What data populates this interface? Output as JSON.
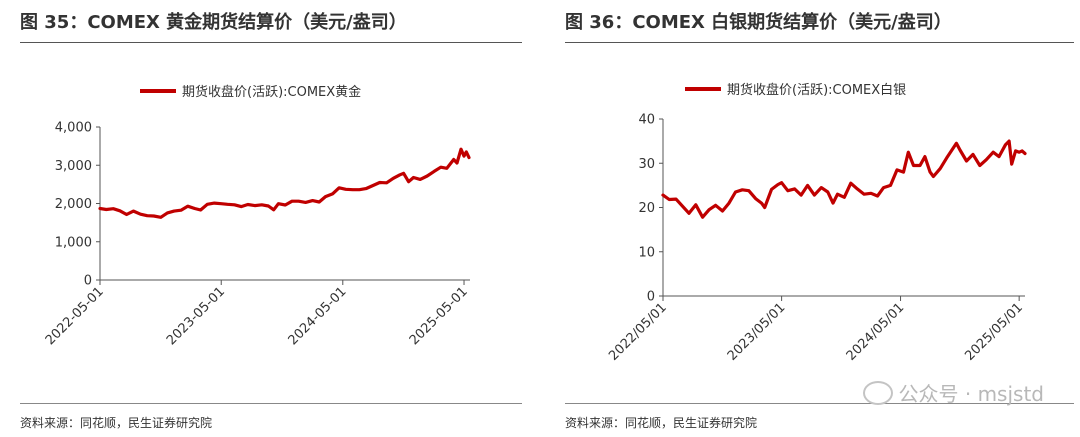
{
  "panels": [
    {
      "title": "图 35：COMEX 黄金期货结算价（美元/盎司）",
      "source": "资料来源：同花顺，民生证券研究院"
    },
    {
      "title": "图 36：COMEX 白银期货结算价（美元/盎司）",
      "source": "资料来源：同花顺，民生证券研究院"
    }
  ],
  "watermark": {
    "text": "公众号 · msjstd",
    "icon": "wechat-icon"
  },
  "colors": {
    "line": "#c00000",
    "axis": "#555555",
    "text": "#333333"
  },
  "chart_data": [
    {
      "type": "line",
      "legend_position": "top-center",
      "grid": false,
      "series": [
        {
          "name": "期货收盘价(活跃):COMEX黄金",
          "color": "#c00000",
          "points": [
            [
              "2022-05-01",
              1870
            ],
            [
              "2022-05-20",
              1842
            ],
            [
              "2022-06-10",
              1865
            ],
            [
              "2022-06-30",
              1808
            ],
            [
              "2022-07-20",
              1712
            ],
            [
              "2022-08-10",
              1800
            ],
            [
              "2022-08-31",
              1720
            ],
            [
              "2022-09-20",
              1680
            ],
            [
              "2022-10-10",
              1672
            ],
            [
              "2022-10-31",
              1640
            ],
            [
              "2022-11-20",
              1755
            ],
            [
              "2022-12-10",
              1800
            ],
            [
              "2022-12-31",
              1826
            ],
            [
              "2023-01-20",
              1930
            ],
            [
              "2023-02-10",
              1870
            ],
            [
              "2023-02-28",
              1830
            ],
            [
              "2023-03-20",
              1980
            ],
            [
              "2023-04-10",
              2010
            ],
            [
              "2023-05-01",
              1995
            ],
            [
              "2023-05-20",
              1980
            ],
            [
              "2023-06-10",
              1965
            ],
            [
              "2023-06-30",
              1920
            ],
            [
              "2023-07-20",
              1975
            ],
            [
              "2023-08-10",
              1945
            ],
            [
              "2023-08-31",
              1965
            ],
            [
              "2023-09-20",
              1935
            ],
            [
              "2023-10-06",
              1835
            ],
            [
              "2023-10-20",
              1995
            ],
            [
              "2023-11-10",
              1960
            ],
            [
              "2023-11-30",
              2060
            ],
            [
              "2023-12-20",
              2060
            ],
            [
              "2024-01-10",
              2030
            ],
            [
              "2024-01-31",
              2075
            ],
            [
              "2024-02-20",
              2040
            ],
            [
              "2024-03-10",
              2180
            ],
            [
              "2024-03-31",
              2250
            ],
            [
              "2024-04-20",
              2410
            ],
            [
              "2024-05-10",
              2370
            ],
            [
              "2024-05-31",
              2360
            ],
            [
              "2024-06-20",
              2360
            ],
            [
              "2024-07-10",
              2390
            ],
            [
              "2024-07-31",
              2470
            ],
            [
              "2024-08-20",
              2550
            ],
            [
              "2024-09-10",
              2540
            ],
            [
              "2024-09-30",
              2660
            ],
            [
              "2024-10-20",
              2750
            ],
            [
              "2024-10-31",
              2790
            ],
            [
              "2024-11-15",
              2570
            ],
            [
              "2024-11-30",
              2680
            ],
            [
              "2024-12-20",
              2630
            ],
            [
              "2025-01-10",
              2720
            ],
            [
              "2025-01-31",
              2840
            ],
            [
              "2025-02-20",
              2950
            ],
            [
              "2025-03-10",
              2920
            ],
            [
              "2025-03-31",
              3150
            ],
            [
              "2025-04-10",
              3060
            ],
            [
              "2025-04-22",
              3420
            ],
            [
              "2025-05-01",
              3240
            ],
            [
              "2025-05-08",
              3350
            ],
            [
              "2025-05-16",
              3200
            ]
          ]
        }
      ],
      "x_ticks": [
        "2022-05-01",
        "2023-05-01",
        "2024-05-01",
        "2025-05-01"
      ],
      "x_range": [
        "2022-05-01",
        "2025-05-19"
      ],
      "y_ticks": [
        "0",
        "1,000",
        "2,000",
        "3,000",
        "4,000"
      ],
      "ylim": [
        0,
        4000
      ]
    },
    {
      "type": "line",
      "legend_position": "top-center",
      "grid": false,
      "series": [
        {
          "name": "期货收盘价(活跃):COMEX白银",
          "color": "#c00000",
          "points": [
            [
              "2022-05-01",
              22.8
            ],
            [
              "2022-05-20",
              21.8
            ],
            [
              "2022-06-10",
              21.9
            ],
            [
              "2022-06-30",
              20.3
            ],
            [
              "2022-07-20",
              18.7
            ],
            [
              "2022-08-10",
              20.6
            ],
            [
              "2022-08-31",
              17.8
            ],
            [
              "2022-09-20",
              19.5
            ],
            [
              "2022-10-10",
              20.5
            ],
            [
              "2022-10-31",
              19.2
            ],
            [
              "2022-11-20",
              21.0
            ],
            [
              "2022-12-10",
              23.5
            ],
            [
              "2022-12-31",
              24.0
            ],
            [
              "2023-01-20",
              23.8
            ],
            [
              "2023-02-10",
              22.0
            ],
            [
              "2023-02-28",
              21.0
            ],
            [
              "2023-03-10",
              20.0
            ],
            [
              "2023-03-31",
              24.1
            ],
            [
              "2023-04-20",
              25.2
            ],
            [
              "2023-05-01",
              25.6
            ],
            [
              "2023-05-20",
              23.8
            ],
            [
              "2023-06-10",
              24.2
            ],
            [
              "2023-06-30",
              22.8
            ],
            [
              "2023-07-20",
              25.0
            ],
            [
              "2023-08-10",
              22.8
            ],
            [
              "2023-08-31",
              24.5
            ],
            [
              "2023-09-20",
              23.5
            ],
            [
              "2023-10-06",
              21.0
            ],
            [
              "2023-10-20",
              23.0
            ],
            [
              "2023-11-10",
              22.3
            ],
            [
              "2023-11-30",
              25.5
            ],
            [
              "2023-12-20",
              24.2
            ],
            [
              "2024-01-10",
              23.0
            ],
            [
              "2024-01-31",
              23.2
            ],
            [
              "2024-02-20",
              22.6
            ],
            [
              "2024-03-10",
              24.5
            ],
            [
              "2024-03-31",
              25.0
            ],
            [
              "2024-04-20",
              28.5
            ],
            [
              "2024-05-10",
              28.0
            ],
            [
              "2024-05-25",
              32.5
            ],
            [
              "2024-06-10",
              29.5
            ],
            [
              "2024-06-30",
              29.5
            ],
            [
              "2024-07-15",
              31.5
            ],
            [
              "2024-07-31",
              28.0
            ],
            [
              "2024-08-10",
              27.0
            ],
            [
              "2024-08-31",
              28.8
            ],
            [
              "2024-09-20",
              31.2
            ],
            [
              "2024-10-20",
              34.5
            ],
            [
              "2024-10-31",
              33.0
            ],
            [
              "2024-11-20",
              30.5
            ],
            [
              "2024-12-10",
              32.0
            ],
            [
              "2024-12-31",
              29.5
            ],
            [
              "2025-01-20",
              30.8
            ],
            [
              "2025-02-10",
              32.5
            ],
            [
              "2025-02-28",
              31.5
            ],
            [
              "2025-03-20",
              34.2
            ],
            [
              "2025-03-31",
              35.0
            ],
            [
              "2025-04-08",
              29.8
            ],
            [
              "2025-04-20",
              32.8
            ],
            [
              "2025-05-01",
              32.5
            ],
            [
              "2025-05-10",
              32.8
            ],
            [
              "2025-05-19",
              32.2
            ]
          ]
        }
      ],
      "x_ticks": [
        "2022/05/01",
        "2023/05/01",
        "2024/05/01",
        "2025/05/01"
      ],
      "x_range": [
        "2022-05-01",
        "2025-05-19"
      ],
      "y_ticks": [
        "0",
        "10",
        "20",
        "30",
        "40"
      ],
      "ylim": [
        0,
        40
      ]
    }
  ]
}
